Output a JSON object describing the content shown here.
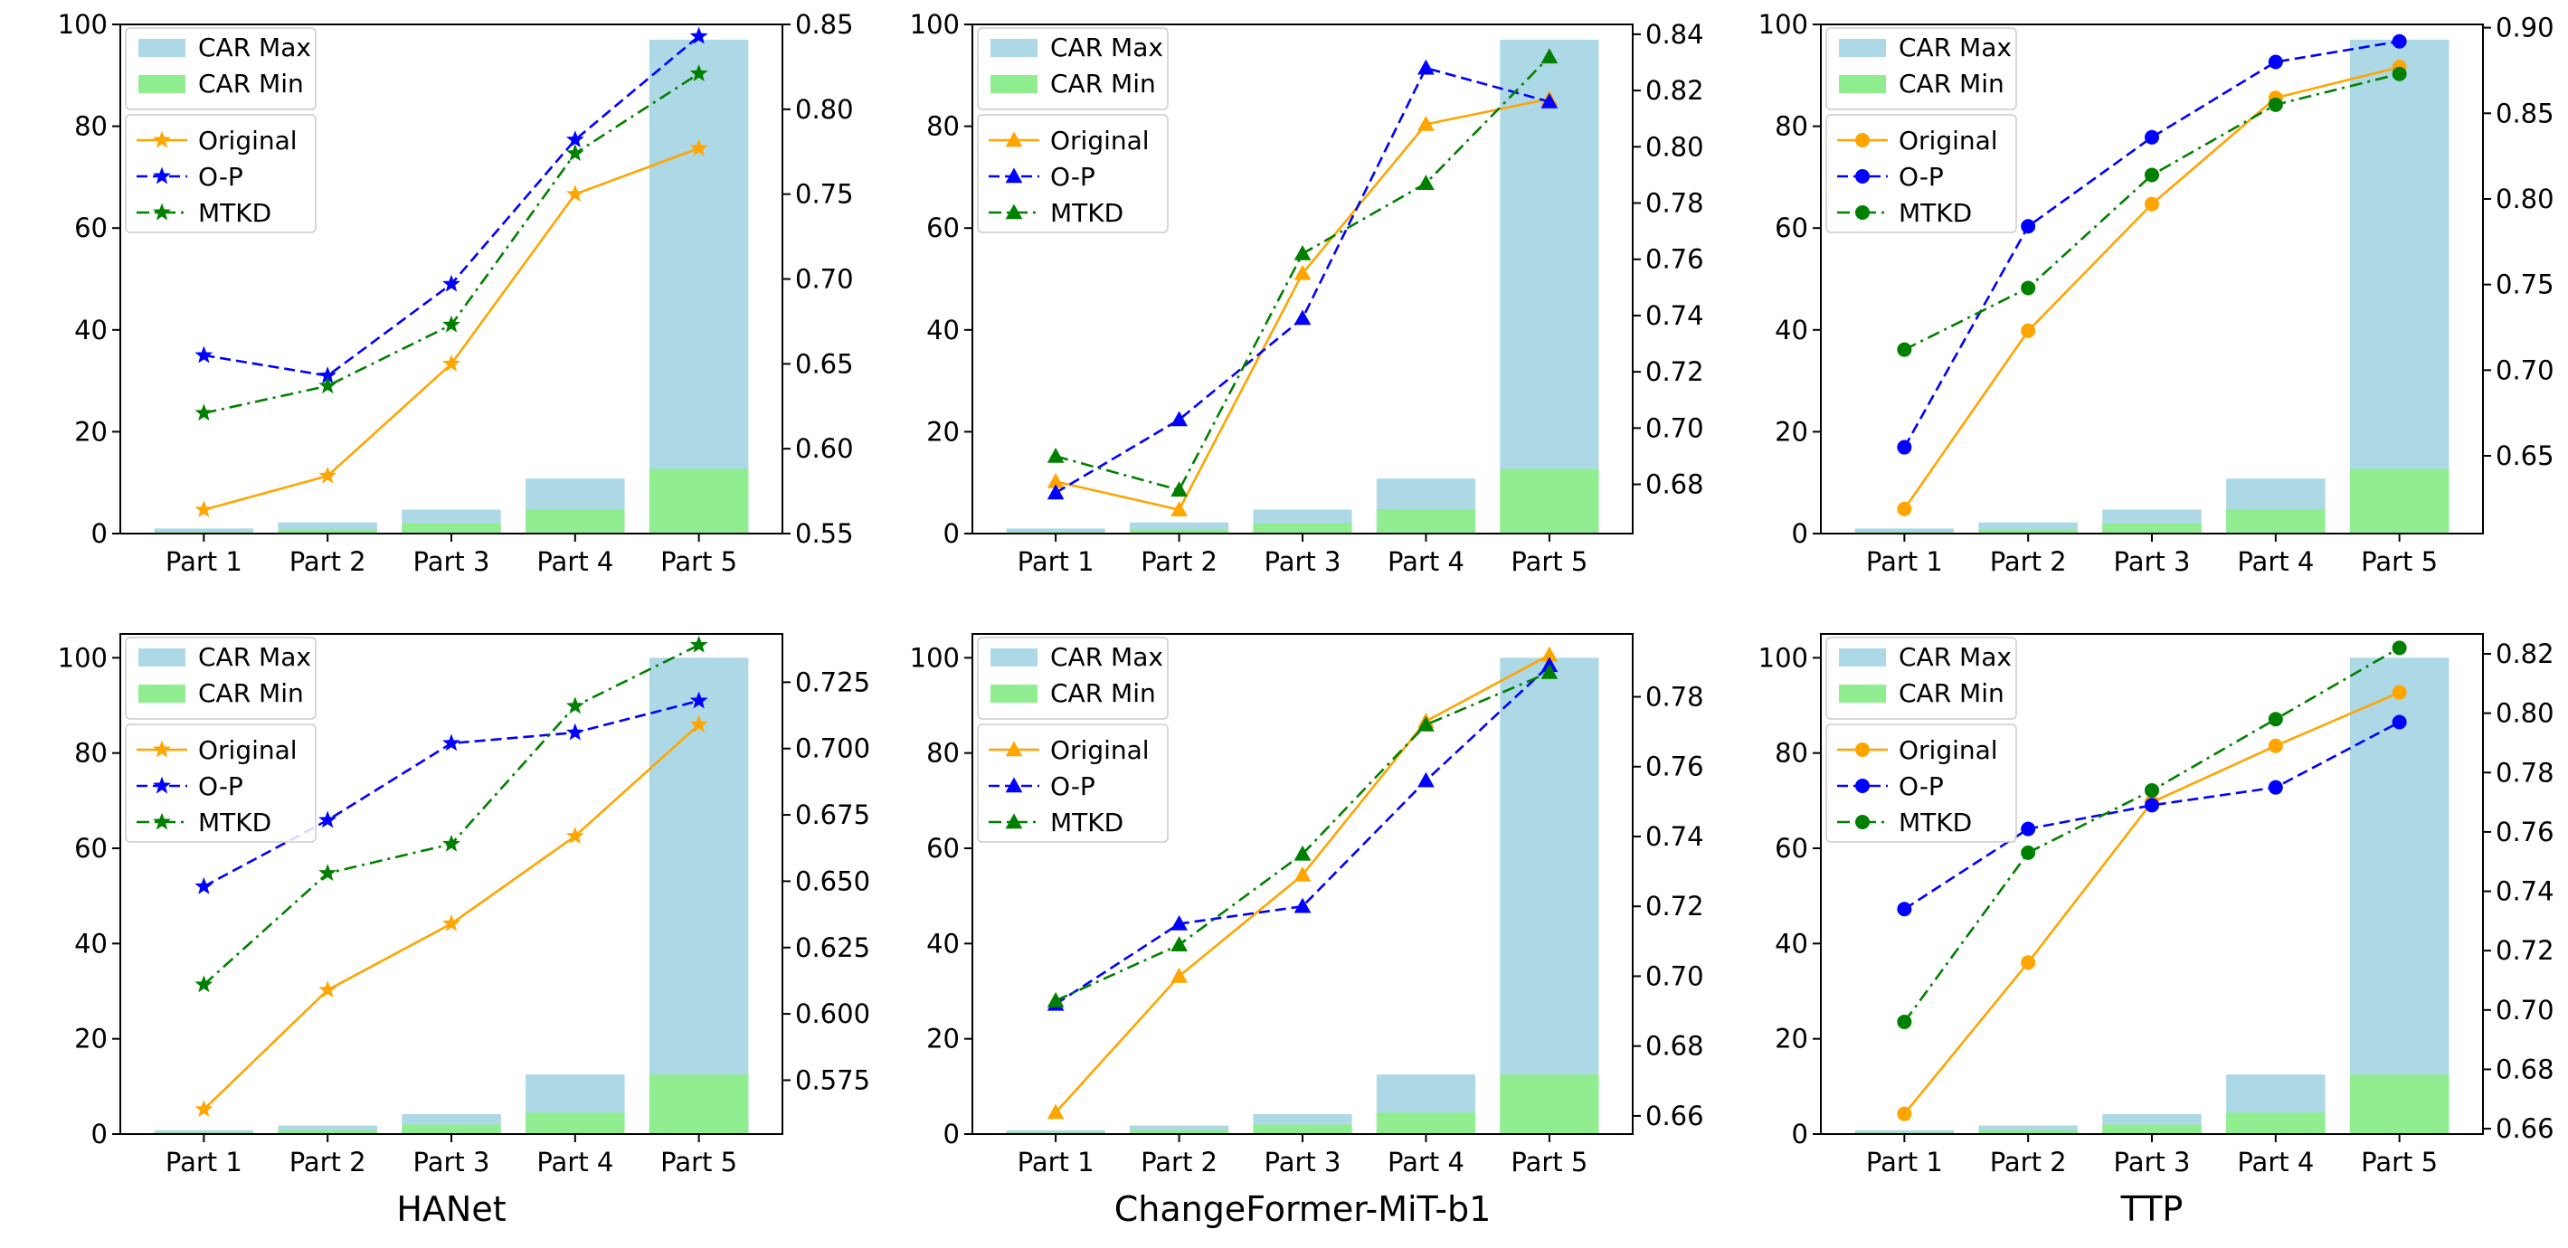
{
  "chart_data": [
    {
      "id": "hanet-top",
      "type": "bar+line",
      "categories": [
        "Part 1",
        "Part 2",
        "Part 3",
        "Part 4",
        "Part 5"
      ],
      "bars": [
        {
          "name": "CAR Max",
          "color": "#add8e6",
          "values": [
            1.0,
            2.2,
            4.7,
            10.8,
            97.0
          ]
        },
        {
          "name": "CAR Min",
          "color": "#90ee90",
          "values": [
            0.3,
            0.8,
            2.0,
            4.8,
            12.7
          ]
        }
      ],
      "ylim": [
        0,
        100
      ],
      "yticks": [
        0,
        20,
        40,
        60,
        80,
        100
      ],
      "y2lim": [
        0.55,
        0.85
      ],
      "y2ticks": [
        "0.55",
        "0.60",
        "0.65",
        "0.70",
        "0.75",
        "0.80",
        "0.85"
      ],
      "marker": "star",
      "series": [
        {
          "name": "Original",
          "color": "#ffa500",
          "dash": "solid",
          "values": [
            0.564,
            0.584,
            0.65,
            0.75,
            0.777
          ]
        },
        {
          "name": "O-P",
          "color": "#0000ff",
          "dash": "dashed",
          "values": [
            0.655,
            0.643,
            0.697,
            0.782,
            0.843
          ]
        },
        {
          "name": "MTKD",
          "color": "#008000",
          "dash": "dashdot",
          "values": [
            0.621,
            0.637,
            0.673,
            0.774,
            0.821
          ]
        }
      ],
      "title": ""
    },
    {
      "id": "changeformer-top",
      "type": "bar+line",
      "categories": [
        "Part 1",
        "Part 2",
        "Part 3",
        "Part 4",
        "Part 5"
      ],
      "bars": [
        {
          "name": "CAR Max",
          "color": "#add8e6",
          "values": [
            1.0,
            2.2,
            4.7,
            10.8,
            97.0
          ]
        },
        {
          "name": "CAR Min",
          "color": "#90ee90",
          "values": [
            0.3,
            0.8,
            2.0,
            4.8,
            12.7
          ]
        }
      ],
      "ylim": [
        0,
        100
      ],
      "yticks": [
        0,
        20,
        40,
        60,
        80,
        100
      ],
      "y2lim": [
        0.6625,
        0.8435
      ],
      "y2ticks": [
        "0.68",
        "0.70",
        "0.72",
        "0.74",
        "0.76",
        "0.78",
        "0.80",
        "0.82",
        "0.84"
      ],
      "marker": "triangle",
      "series": [
        {
          "name": "Original",
          "color": "#ffa500",
          "dash": "solid",
          "values": [
            0.681,
            0.671,
            0.755,
            0.808,
            0.817
          ]
        },
        {
          "name": "O-P",
          "color": "#0000ff",
          "dash": "dashed",
          "values": [
            0.677,
            0.703,
            0.739,
            0.828,
            0.816
          ]
        },
        {
          "name": "MTKD",
          "color": "#008000",
          "dash": "dashdot",
          "values": [
            0.69,
            0.678,
            0.762,
            0.787,
            0.832
          ]
        }
      ],
      "title": ""
    },
    {
      "id": "ttp-top",
      "type": "bar+line",
      "categories": [
        "Part 1",
        "Part 2",
        "Part 3",
        "Part 4",
        "Part 5"
      ],
      "bars": [
        {
          "name": "CAR Max",
          "color": "#add8e6",
          "values": [
            1.0,
            2.2,
            4.7,
            10.8,
            97.0
          ]
        },
        {
          "name": "CAR Min",
          "color": "#90ee90",
          "values": [
            0.3,
            0.8,
            2.0,
            4.8,
            12.7
          ]
        }
      ],
      "ylim": [
        0,
        100
      ],
      "yticks": [
        0,
        20,
        40,
        60,
        80,
        100
      ],
      "y2lim": [
        0.6046,
        0.9019
      ],
      "y2ticks": [
        "0.65",
        "0.70",
        "0.75",
        "0.80",
        "0.85",
        "0.90"
      ],
      "marker": "circle",
      "series": [
        {
          "name": "Original",
          "color": "#ffa500",
          "dash": "solid",
          "values": [
            0.619,
            0.723,
            0.797,
            0.859,
            0.877
          ]
        },
        {
          "name": "O-P",
          "color": "#0000ff",
          "dash": "dashed",
          "values": [
            0.655,
            0.784,
            0.836,
            0.88,
            0.892
          ]
        },
        {
          "name": "MTKD",
          "color": "#008000",
          "dash": "dashdot",
          "values": [
            0.712,
            0.748,
            0.814,
            0.855,
            0.873
          ]
        }
      ],
      "title": ""
    },
    {
      "id": "hanet-bottom",
      "type": "bar+line",
      "categories": [
        "Part 1",
        "Part 2",
        "Part 3",
        "Part 4",
        "Part 5"
      ],
      "bars": [
        {
          "name": "CAR Max",
          "color": "#add8e6",
          "values": [
            0.8,
            1.8,
            4.2,
            12.5,
            100.0
          ]
        },
        {
          "name": "CAR Min",
          "color": "#90ee90",
          "values": [
            0.3,
            0.8,
            2.0,
            4.5,
            12.5
          ]
        }
      ],
      "ylim": [
        0,
        105
      ],
      "yticks": [
        0,
        20,
        40,
        60,
        80,
        100
      ],
      "y2lim": [
        0.5547,
        0.7432
      ],
      "y2ticks": [
        "0.575",
        "0.600",
        "0.625",
        "0.650",
        "0.675",
        "0.700",
        "0.725"
      ],
      "marker": "star",
      "series": [
        {
          "name": "Original",
          "color": "#ffa500",
          "dash": "solid",
          "values": [
            0.564,
            0.609,
            0.634,
            0.667,
            0.709
          ]
        },
        {
          "name": "O-P",
          "color": "#0000ff",
          "dash": "dashed",
          "values": [
            0.648,
            0.673,
            0.702,
            0.706,
            0.718
          ]
        },
        {
          "name": "MTKD",
          "color": "#008000",
          "dash": "dashdot",
          "values": [
            0.611,
            0.653,
            0.664,
            0.716,
            0.739
          ]
        }
      ],
      "xlabel": "HANet"
    },
    {
      "id": "changeformer-bottom",
      "type": "bar+line",
      "categories": [
        "Part 1",
        "Part 2",
        "Part 3",
        "Part 4",
        "Part 5"
      ],
      "bars": [
        {
          "name": "CAR Max",
          "color": "#add8e6",
          "values": [
            0.8,
            1.8,
            4.2,
            12.5,
            100.0
          ]
        },
        {
          "name": "CAR Min",
          "color": "#90ee90",
          "values": [
            0.3,
            0.8,
            2.0,
            4.5,
            12.5
          ]
        }
      ],
      "ylim": [
        0,
        105
      ],
      "yticks": [
        0,
        20,
        40,
        60,
        80,
        100
      ],
      "y2lim": [
        0.6548,
        0.798
      ],
      "y2ticks": [
        "0.66",
        "0.68",
        "0.70",
        "0.72",
        "0.74",
        "0.76",
        "0.78"
      ],
      "marker": "triangle",
      "series": [
        {
          "name": "Original",
          "color": "#ffa500",
          "dash": "solid",
          "values": [
            0.661,
            0.7,
            0.729,
            0.773,
            0.792
          ]
        },
        {
          "name": "O-P",
          "color": "#0000ff",
          "dash": "dashed",
          "values": [
            0.692,
            0.715,
            0.72,
            0.756,
            0.789
          ]
        },
        {
          "name": "MTKD",
          "color": "#008000",
          "dash": "dashdot",
          "values": [
            0.693,
            0.709,
            0.735,
            0.772,
            0.787
          ]
        }
      ],
      "xlabel": "ChangeFormer-MiT-b1"
    },
    {
      "id": "ttp-bottom",
      "type": "bar+line",
      "categories": [
        "Part 1",
        "Part 2",
        "Part 3",
        "Part 4",
        "Part 5"
      ],
      "bars": [
        {
          "name": "CAR Max",
          "color": "#add8e6",
          "values": [
            0.8,
            1.8,
            4.2,
            12.5,
            100.0
          ]
        },
        {
          "name": "CAR Min",
          "color": "#90ee90",
          "values": [
            0.3,
            0.8,
            2.0,
            4.5,
            12.5
          ]
        }
      ],
      "ylim": [
        0,
        105
      ],
      "yticks": [
        0,
        20,
        40,
        60,
        80,
        100
      ],
      "y2lim": [
        0.6582,
        0.8267
      ],
      "y2ticks": [
        "0.66",
        "0.68",
        "0.70",
        "0.72",
        "0.74",
        "0.76",
        "0.78",
        "0.80",
        "0.82"
      ],
      "marker": "circle",
      "series": [
        {
          "name": "Original",
          "color": "#ffa500",
          "dash": "solid",
          "values": [
            0.665,
            0.716,
            0.77,
            0.789,
            0.807
          ]
        },
        {
          "name": "O-P",
          "color": "#0000ff",
          "dash": "dashed",
          "values": [
            0.734,
            0.761,
            0.769,
            0.775,
            0.797
          ]
        },
        {
          "name": "MTKD",
          "color": "#008000",
          "dash": "dashdot",
          "values": [
            0.696,
            0.753,
            0.774,
            0.798,
            0.822
          ]
        }
      ],
      "xlabel": "TTP"
    }
  ]
}
